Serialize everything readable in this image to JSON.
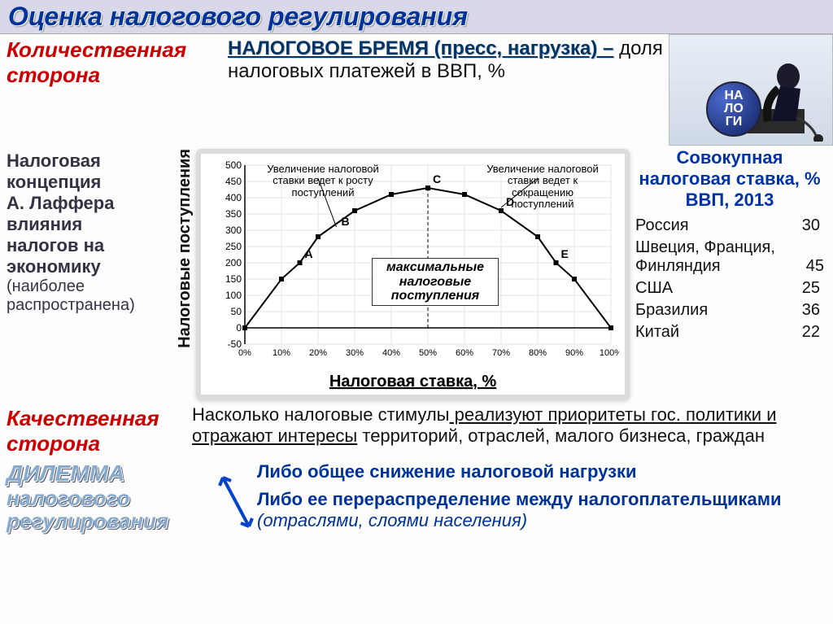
{
  "title": "Оценка налогового регулирования",
  "quantitative_label": "Количественная сторона",
  "burden": {
    "term": "НАЛОГОВОЕ  БРЕМЯ (пресс, нагрузка) –",
    "definition": " доля налоговых платежей в ВВП, %"
  },
  "nalogi_ball": "НА\nЛО\nГИ",
  "laffer": {
    "l1": "Налоговая",
    "l2": "концепция",
    "l3": "А. Лаффера",
    "l4": "влияния",
    "l5": "налогов на",
    "l6": "экономику",
    "sub": "(наиболее распространена)"
  },
  "chart": {
    "ylabel": "Налоговые поступления",
    "xlabel": "Налоговая ставка, %",
    "caption_left": "Увеличение налоговой ставки ведет к росту поступлений",
    "caption_right": "Увеличение налоговой ставки ведет к сокращению поступлений",
    "max_label": "максимальные налоговые поступления",
    "xlim": [
      0,
      100
    ],
    "ylim": [
      -50,
      500
    ],
    "xticks": [
      "0%",
      "10%",
      "20%",
      "30%",
      "40%",
      "50%",
      "60%",
      "70%",
      "80%",
      "90%",
      "100%"
    ],
    "yticks": [
      -50,
      0,
      50,
      100,
      150,
      200,
      250,
      300,
      350,
      400,
      450,
      500
    ],
    "curve": [
      {
        "x": 0,
        "y": 0
      },
      {
        "x": 10,
        "y": 150
      },
      {
        "x": 15,
        "y": 200
      },
      {
        "x": 20,
        "y": 280
      },
      {
        "x": 30,
        "y": 360
      },
      {
        "x": 40,
        "y": 410
      },
      {
        "x": 50,
        "y": 430
      },
      {
        "x": 60,
        "y": 410
      },
      {
        "x": 70,
        "y": 360
      },
      {
        "x": 80,
        "y": 280
      },
      {
        "x": 85,
        "y": 200
      },
      {
        "x": 90,
        "y": 150
      },
      {
        "x": 100,
        "y": 0
      }
    ],
    "points": {
      "A": {
        "x": 15,
        "y": 200
      },
      "B": {
        "x": 25,
        "y": 300
      },
      "C": {
        "x": 50,
        "y": 430
      },
      "D": {
        "x": 70,
        "y": 360
      },
      "E": {
        "x": 85,
        "y": 200
      }
    },
    "colors": {
      "curve": "#000000",
      "grid": "#cccccc",
      "bg": "#ffffff",
      "marker": "#000000"
    }
  },
  "rates": {
    "header": "Совокупная налоговая ставка, % ВВП, 2013",
    "rows": [
      {
        "country": "Россия",
        "value": "30"
      },
      {
        "country": "Швеция, Франция, Финляндия",
        "value": "45"
      },
      {
        "country": "США",
        "value": "25"
      },
      {
        "country": "Бразилия",
        "value": "36"
      },
      {
        "country": "Китай",
        "value": "22"
      }
    ]
  },
  "qualitative_label": "Качественная сторона",
  "qualitative_text": {
    "part1": "Насколько налоговые стимулы",
    "ul": " реализуют приоритеты гос. политики и отражают интересы",
    "part2": " территорий, отраслей, малого бизнеса, граждан"
  },
  "dilemma": {
    "l1": "ДИЛЕММА",
    "l2": "налогового",
    "l3": "регулирования",
    "opt1": "Либо общее снижение налоговой нагрузки",
    "opt2a": "Либо ее перераспределение между налогоплательщиками ",
    "opt2b": "(отраслями, слоями населения)"
  }
}
